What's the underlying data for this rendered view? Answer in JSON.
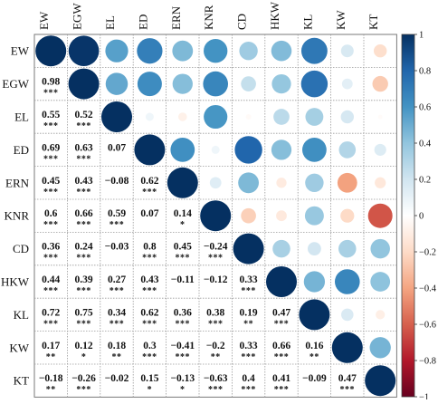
{
  "chart_data": {
    "type": "heatmap",
    "variables": [
      "EW",
      "EGW",
      "EL",
      "ED",
      "ERN",
      "KNR",
      "CD",
      "HKW",
      "KL",
      "KW",
      "KT"
    ],
    "matrix": [
      [
        1,
        0.98,
        0.55,
        0.69,
        0.45,
        0.6,
        0.36,
        0.44,
        0.72,
        0.17,
        -0.18
      ],
      [
        0.98,
        1,
        0.52,
        0.63,
        0.43,
        0.66,
        0.24,
        0.39,
        0.75,
        0.12,
        -0.26
      ],
      [
        0.55,
        0.52,
        1,
        0.07,
        -0.08,
        0.59,
        -0.03,
        0.27,
        0.34,
        0.18,
        -0.02
      ],
      [
        0.69,
        0.63,
        0.07,
        1,
        0.62,
        0.07,
        0.8,
        0.43,
        0.62,
        0.3,
        0.15
      ],
      [
        0.45,
        0.43,
        -0.08,
        0.62,
        1,
        0.14,
        0.45,
        -0.11,
        0.36,
        -0.41,
        -0.13
      ],
      [
        0.6,
        0.66,
        0.59,
        0.07,
        0.14,
        1,
        -0.24,
        -0.12,
        0.38,
        -0.2,
        -0.63
      ],
      [
        0.36,
        0.24,
        -0.03,
        0.8,
        0.45,
        -0.24,
        1,
        0.33,
        0.19,
        0.33,
        0.4
      ],
      [
        0.44,
        0.39,
        0.27,
        0.43,
        -0.11,
        -0.12,
        0.33,
        1,
        0.47,
        0.66,
        0.41
      ],
      [
        0.72,
        0.75,
        0.34,
        0.62,
        0.36,
        0.38,
        0.19,
        0.47,
        1,
        0.16,
        -0.09
      ],
      [
        0.17,
        0.12,
        0.18,
        0.3,
        -0.41,
        -0.2,
        0.33,
        0.66,
        0.16,
        1,
        0.47
      ],
      [
        -0.18,
        -0.26,
        -0.02,
        0.15,
        -0.13,
        -0.63,
        0.4,
        0.41,
        -0.09,
        0.47,
        1
      ]
    ],
    "lower_triangle": [
      {
        "row": "EGW",
        "col": "EW",
        "text": "0.98",
        "sig": "***"
      },
      {
        "row": "EL",
        "col": "EW",
        "text": "0.55",
        "sig": "***"
      },
      {
        "row": "EL",
        "col": "EGW",
        "text": "0.52",
        "sig": "***"
      },
      {
        "row": "ED",
        "col": "EW",
        "text": "0.69",
        "sig": "***"
      },
      {
        "row": "ED",
        "col": "EGW",
        "text": "0.63",
        "sig": "***"
      },
      {
        "row": "ED",
        "col": "EL",
        "text": "0.07",
        "sig": ""
      },
      {
        "row": "ERN",
        "col": "EW",
        "text": "0.45",
        "sig": "***"
      },
      {
        "row": "ERN",
        "col": "EGW",
        "text": "0.43",
        "sig": "***"
      },
      {
        "row": "ERN",
        "col": "EL",
        "text": "−0.08",
        "sig": ""
      },
      {
        "row": "ERN",
        "col": "ED",
        "text": "0.62",
        "sig": "***"
      },
      {
        "row": "KNR",
        "col": "EW",
        "text": "0.6",
        "sig": "***"
      },
      {
        "row": "KNR",
        "col": "EGW",
        "text": "0.66",
        "sig": "***"
      },
      {
        "row": "KNR",
        "col": "EL",
        "text": "0.59",
        "sig": "***"
      },
      {
        "row": "KNR",
        "col": "ED",
        "text": "0.07",
        "sig": ""
      },
      {
        "row": "KNR",
        "col": "ERN",
        "text": "0.14",
        "sig": "*"
      },
      {
        "row": "CD",
        "col": "EW",
        "text": "0.36",
        "sig": "***"
      },
      {
        "row": "CD",
        "col": "EGW",
        "text": "0.24",
        "sig": "***"
      },
      {
        "row": "CD",
        "col": "EL",
        "text": "−0.03",
        "sig": ""
      },
      {
        "row": "CD",
        "col": "ED",
        "text": "0.8",
        "sig": "***"
      },
      {
        "row": "CD",
        "col": "ERN",
        "text": "0.45",
        "sig": "***"
      },
      {
        "row": "CD",
        "col": "KNR",
        "text": "−0.24",
        "sig": "***"
      },
      {
        "row": "HKW",
        "col": "EW",
        "text": "0.44",
        "sig": "***"
      },
      {
        "row": "HKW",
        "col": "EGW",
        "text": "0.39",
        "sig": "***"
      },
      {
        "row": "HKW",
        "col": "EL",
        "text": "0.27",
        "sig": "***"
      },
      {
        "row": "HKW",
        "col": "ED",
        "text": "0.43",
        "sig": "***"
      },
      {
        "row": "HKW",
        "col": "ERN",
        "text": "−0.11",
        "sig": ""
      },
      {
        "row": "HKW",
        "col": "KNR",
        "text": "−0.12",
        "sig": ""
      },
      {
        "row": "HKW",
        "col": "CD",
        "text": "0.33",
        "sig": "***"
      },
      {
        "row": "KL",
        "col": "EW",
        "text": "0.72",
        "sig": "***"
      },
      {
        "row": "KL",
        "col": "EGW",
        "text": "0.75",
        "sig": "***"
      },
      {
        "row": "KL",
        "col": "EL",
        "text": "0.34",
        "sig": "***"
      },
      {
        "row": "KL",
        "col": "ED",
        "text": "0.62",
        "sig": "***"
      },
      {
        "row": "KL",
        "col": "ERN",
        "text": "0.36",
        "sig": "***"
      },
      {
        "row": "KL",
        "col": "KNR",
        "text": "0.38",
        "sig": "***"
      },
      {
        "row": "KL",
        "col": "CD",
        "text": "0.19",
        "sig": "**"
      },
      {
        "row": "KL",
        "col": "HKW",
        "text": "0.47",
        "sig": "***"
      },
      {
        "row": "KW",
        "col": "EW",
        "text": "0.17",
        "sig": "**"
      },
      {
        "row": "KW",
        "col": "EGW",
        "text": "0.12",
        "sig": "*"
      },
      {
        "row": "KW",
        "col": "EL",
        "text": "0.18",
        "sig": "**"
      },
      {
        "row": "KW",
        "col": "ED",
        "text": "0.3",
        "sig": "***"
      },
      {
        "row": "KW",
        "col": "ERN",
        "text": "−0.41",
        "sig": "***"
      },
      {
        "row": "KW",
        "col": "KNR",
        "text": "−0.2",
        "sig": "**"
      },
      {
        "row": "KW",
        "col": "CD",
        "text": "0.33",
        "sig": "***"
      },
      {
        "row": "KW",
        "col": "HKW",
        "text": "0.66",
        "sig": "***"
      },
      {
        "row": "KW",
        "col": "KL",
        "text": "0.16",
        "sig": "**"
      },
      {
        "row": "KT",
        "col": "EW",
        "text": "−0.18",
        "sig": "**"
      },
      {
        "row": "KT",
        "col": "EGW",
        "text": "−0.26",
        "sig": "***"
      },
      {
        "row": "KT",
        "col": "EL",
        "text": "−0.02",
        "sig": ""
      },
      {
        "row": "KT",
        "col": "ED",
        "text": "0.15",
        "sig": "*"
      },
      {
        "row": "KT",
        "col": "ERN",
        "text": "−0.13",
        "sig": "*"
      },
      {
        "row": "KT",
        "col": "KNR",
        "text": "−0.63",
        "sig": "***"
      },
      {
        "row": "KT",
        "col": "CD",
        "text": "0.4",
        "sig": "***"
      },
      {
        "row": "KT",
        "col": "HKW",
        "text": "0.41",
        "sig": "***"
      },
      {
        "row": "KT",
        "col": "KL",
        "text": "−0.09",
        "sig": ""
      },
      {
        "row": "KT",
        "col": "KW",
        "text": "0.47",
        "sig": "***"
      }
    ],
    "upper_triangle_display": "circles",
    "colorbar": {
      "range": [
        -1,
        1
      ],
      "ticks": [
        "1",
        "0.8",
        "0.6",
        "0.4",
        "0.2",
        "0",
        "−0.2",
        "−0.4",
        "−0.6",
        "−0.8",
        "−1"
      ],
      "positive_color": "#0b3167",
      "negative_color": "#6b0a1f",
      "neutral_color": "#ffffff"
    }
  }
}
